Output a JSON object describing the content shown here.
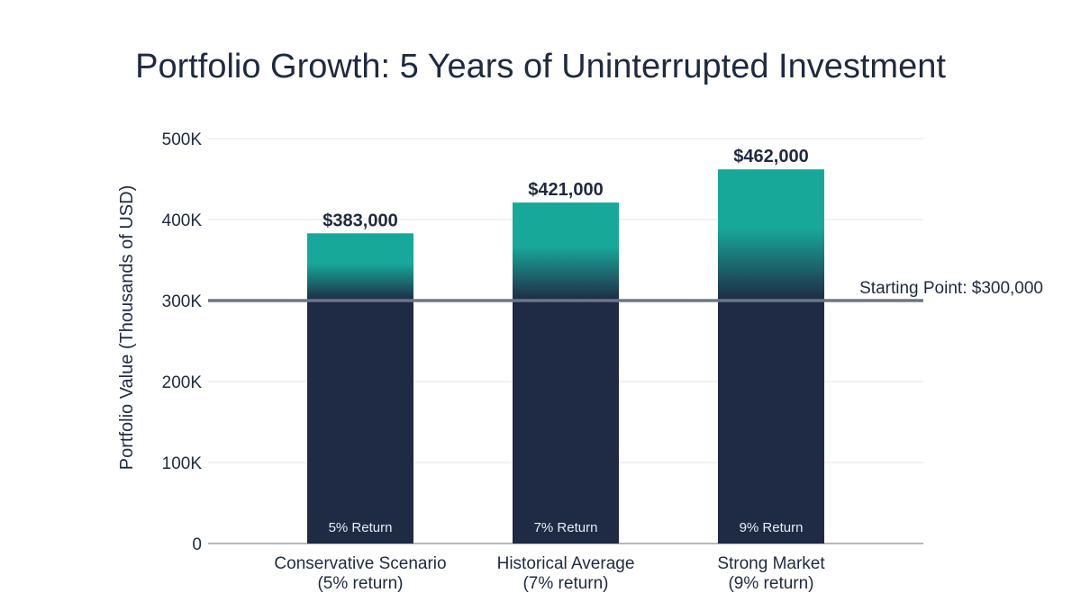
{
  "chart_data": {
    "type": "bar",
    "title": "Portfolio Growth: 5 Years of Uninterrupted Investment",
    "ylabel": "Portfolio Value (Thousands of USD)",
    "xlabel": "",
    "ylim": [
      0,
      500000
    ],
    "yticks": [
      {
        "value": 0,
        "label": "0"
      },
      {
        "value": 100000,
        "label": "100K"
      },
      {
        "value": 200000,
        "label": "200K"
      },
      {
        "value": 300000,
        "label": "300K"
      },
      {
        "value": 400000,
        "label": "400K"
      },
      {
        "value": 500000,
        "label": "500K"
      }
    ],
    "grid": true,
    "categories": [
      {
        "line1": "Conservative Scenario",
        "line2": "(5% return)"
      },
      {
        "line1": "Historical Average",
        "line2": "(7% return)"
      },
      {
        "line1": "Strong Market",
        "line2": "(9% return)"
      }
    ],
    "values": [
      383000,
      421000,
      462000
    ],
    "value_labels": [
      "$383,000",
      "$421,000",
      "$462,000"
    ],
    "bar_inner_labels": [
      "5% Return",
      "7% Return",
      "9% Return"
    ],
    "reference_line": {
      "value": 300000,
      "label": "Starting Point: $300,000"
    },
    "colors": {
      "base": "#1f2a44",
      "growth": "#17a89a",
      "reference_line": "#6b7788",
      "grid": "#e3e6ea",
      "axis": "#9aa2ad",
      "text": "#1f2a40"
    }
  }
}
